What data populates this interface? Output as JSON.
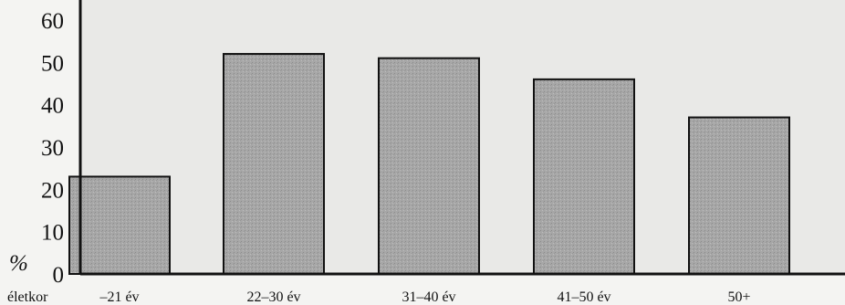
{
  "chart_data": {
    "type": "bar",
    "categories": [
      "–21 év",
      "22–30 év",
      "31–40 év",
      "41–50 év",
      "50+"
    ],
    "values": [
      23,
      52,
      51,
      46,
      37
    ],
    "xlabel": "életkor",
    "ylabel": "%",
    "ylim": [
      0,
      60
    ],
    "yticks": [
      60,
      50,
      40,
      30,
      20,
      10,
      0
    ],
    "grid": false,
    "colors": {
      "bar_fill": "#a9a9a9",
      "bar_stroke": "#111111",
      "axis": "#111111",
      "background": "#e6e6e4"
    }
  }
}
